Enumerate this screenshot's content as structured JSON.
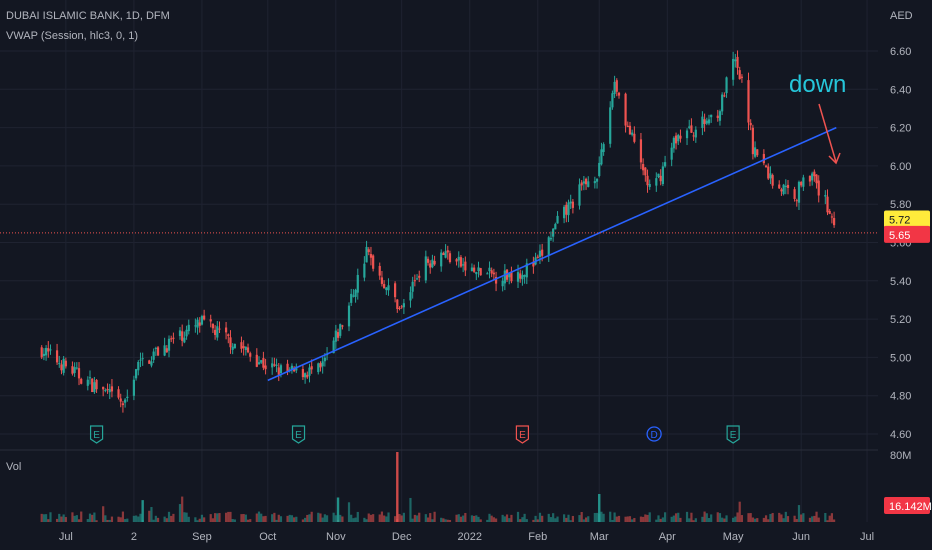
{
  "header": {
    "symbol_line": "DUBAI ISLAMIC BANK, 1D, DFM",
    "indicator_line": "VWAP (Session, hlc3, 0, 1)",
    "volume_label": "Vol"
  },
  "price_axis": {
    "unit": "AED",
    "ticks": [
      "6.60",
      "6.40",
      "6.20",
      "6.00",
      "5.80",
      "5.60",
      "5.40",
      "5.20",
      "5.00",
      "4.80",
      "4.60"
    ],
    "last_price_badge": "5.65",
    "vwap_badge": "5.72"
  },
  "volume_axis": {
    "max_label": "80M",
    "last_volume_badge": "16.142M"
  },
  "time_axis": {
    "labels": [
      "Jul",
      "2",
      "Sep",
      "Oct",
      "Nov",
      "Dec",
      "2022",
      "Feb",
      "Mar",
      "Apr",
      "May",
      "Jun",
      "Jul"
    ]
  },
  "annotation": {
    "text": "down"
  },
  "event_markers": [
    "E",
    "E",
    "E",
    "D",
    "E"
  ],
  "colors": {
    "background": "#131722",
    "up": "#26a69a",
    "down": "#ef5350",
    "trendline": "#2962ff",
    "annotation": "#26c6da",
    "arrow": "#ef5350",
    "grid": "#1f2331",
    "vwap_badge_bg": "#ffeb3b",
    "price_badge_bg": "#f23645"
  },
  "chart_data": {
    "type": "candlestick",
    "title": "DUBAI ISLAMIC BANK, 1D, DFM",
    "ylabel": "AED",
    "ylim": [
      4.55,
      6.75
    ],
    "grid": true,
    "key_points": {
      "dates": [
        "2021-06-20",
        "2021-07-10",
        "2021-07-28",
        "2021-08-02",
        "2021-08-20",
        "2021-09-01",
        "2021-09-15",
        "2021-10-01",
        "2021-10-10",
        "2021-10-25",
        "2021-11-05",
        "2021-11-15",
        "2021-11-25",
        "2021-12-01",
        "2021-12-10",
        "2021-12-20",
        "2022-01-01",
        "2022-01-15",
        "2022-01-25",
        "2022-02-01",
        "2022-02-10",
        "2022-02-22",
        "2022-03-01",
        "2022-03-08",
        "2022-03-14",
        "2022-03-25",
        "2022-04-05",
        "2022-04-15",
        "2022-04-25",
        "2022-05-01",
        "2022-05-06",
        "2022-05-10",
        "2022-05-20",
        "2022-05-30",
        "2022-06-03",
        "2022-06-10",
        "2022-06-15",
        "2022-06-17"
      ],
      "close": [
        5.04,
        4.88,
        4.75,
        4.95,
        5.1,
        5.18,
        5.08,
        4.95,
        4.92,
        4.93,
        5.2,
        5.55,
        5.35,
        5.25,
        5.48,
        5.55,
        5.45,
        5.42,
        5.45,
        5.5,
        5.7,
        5.9,
        5.98,
        6.45,
        6.2,
        5.85,
        6.15,
        6.2,
        6.3,
        6.55,
        6.4,
        6.1,
        5.9,
        5.85,
        6.0,
        5.85,
        5.75,
        5.65
      ]
    },
    "trendline": {
      "start": [
        "2021-10-01",
        4.88
      ],
      "end": [
        "2022-06-17",
        6.2
      ]
    },
    "hline": 5.65,
    "volume_max": 80
  }
}
